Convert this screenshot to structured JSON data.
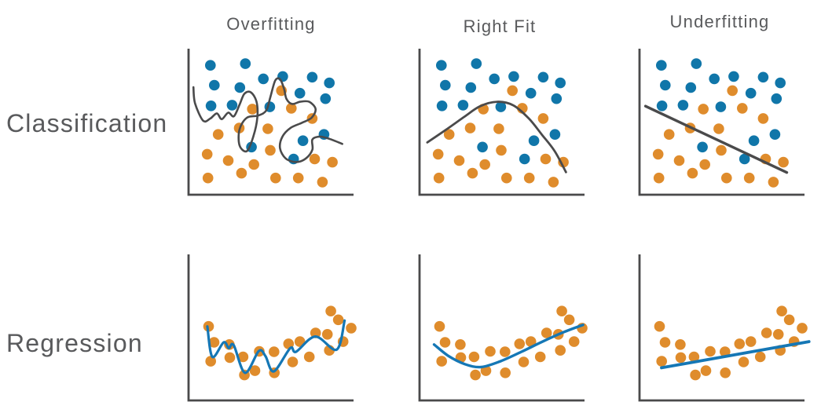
{
  "headers": [
    "Overfitting",
    "Right Fit",
    "Underfitting"
  ],
  "row_labels": [
    "Classification",
    "Regression"
  ],
  "colors": {
    "class_blue": "#1076A9",
    "dot_orange": "#DF8C2C",
    "boundary_dark": "#4A4A4B",
    "fit_blue": "#1577B5",
    "axis": "#4A4A4B",
    "text": "#595A5C",
    "background": "#FFFFFF"
  },
  "scatters": {
    "classification": {
      "blue": [
        [
          13.5,
          10.9
        ],
        [
          35.1,
          9.8
        ],
        [
          46.2,
          20.2
        ],
        [
          58.2,
          18.6
        ],
        [
          76.4,
          19.1
        ],
        [
          87,
          23
        ],
        [
          15.9,
          24.6
        ],
        [
          31.7,
          26.2
        ],
        [
          68.8,
          30.1
        ],
        [
          84.6,
          33.9
        ],
        [
          13.9,
          38.8
        ],
        [
          26.9,
          38.3
        ],
        [
          50.2,
          39.5
        ],
        [
          83.7,
          58.5
        ],
        [
          70.7,
          62.8
        ],
        [
          38.9,
          67.2
        ],
        [
          64.9,
          75.4
        ]
      ],
      "orange": [
        [
          57.4,
          28.3
        ],
        [
          63.5,
          40.5
        ],
        [
          39.4,
          41
        ],
        [
          76.4,
          47.5
        ],
        [
          18.3,
          58.5
        ],
        [
          31.3,
          54.1
        ],
        [
          49,
          54.6
        ],
        [
          11.5,
          72.1
        ],
        [
          24.5,
          76.5
        ],
        [
          40.4,
          79.2
        ],
        [
          50.5,
          69.4
        ],
        [
          77.9,
          75.4
        ],
        [
          88.9,
          77.6
        ],
        [
          12,
          88.5
        ],
        [
          32.7,
          85.2
        ],
        [
          53.8,
          88.5
        ],
        [
          67.8,
          88.5
        ],
        [
          82.7,
          91.3
        ]
      ]
    },
    "regression": {
      "orange": [
        [
          12.4,
          49
        ],
        [
          15.8,
          60
        ],
        [
          13.7,
          73
        ],
        [
          25.2,
          61.5
        ],
        [
          25.5,
          70.5
        ],
        [
          33.7,
          70
        ],
        [
          34.5,
          82.5
        ],
        [
          41,
          79.5
        ],
        [
          43.7,
          66.2
        ],
        [
          52.8,
          66.5
        ],
        [
          53,
          81
        ],
        [
          61.8,
          61
        ],
        [
          64.3,
          73.5
        ],
        [
          68.8,
          59.5
        ],
        [
          74.6,
          70
        ],
        [
          78.5,
          53.5
        ],
        [
          85.8,
          54.5
        ],
        [
          87,
          65.5
        ],
        [
          87.9,
          38.5
        ],
        [
          92.5,
          44.5
        ],
        [
          95.5,
          59.5
        ],
        [
          100.5,
          50.2
        ]
      ]
    }
  },
  "curves": {
    "classification_overfit": {
      "color": "dark",
      "smooth": true,
      "width": 2.6,
      "points": [
        [
          3,
          26
        ],
        [
          4,
          37
        ],
        [
          9,
          49
        ],
        [
          13.5,
          47.5
        ],
        [
          17.5,
          44
        ],
        [
          20.5,
          48
        ],
        [
          24.5,
          43.5
        ],
        [
          28,
          46
        ],
        [
          31.5,
          38
        ],
        [
          34.5,
          30.5
        ],
        [
          38.5,
          29.5
        ],
        [
          42,
          36
        ],
        [
          42.5,
          47
        ],
        [
          40,
          60
        ],
        [
          36,
          70
        ],
        [
          31.5,
          66
        ],
        [
          31.5,
          55
        ],
        [
          36,
          47
        ],
        [
          43,
          45.5
        ],
        [
          48,
          42
        ],
        [
          50.5,
          33
        ],
        [
          53.5,
          21.5
        ],
        [
          56.5,
          20.5
        ],
        [
          59,
          27
        ],
        [
          60.5,
          34
        ],
        [
          64,
          37.5
        ],
        [
          69,
          36
        ],
        [
          74.5,
          36
        ],
        [
          78.5,
          41
        ],
        [
          76,
          47
        ],
        [
          70,
          50.5
        ],
        [
          63,
          54
        ],
        [
          58,
          60
        ],
        [
          56.5,
          68
        ],
        [
          60,
          75
        ],
        [
          66.5,
          77.5
        ],
        [
          72.5,
          75
        ],
        [
          76.5,
          69
        ],
        [
          76.5,
          62
        ],
        [
          81,
          60
        ],
        [
          87,
          61.5
        ],
        [
          95,
          65
        ]
      ]
    },
    "classification_right_fit": {
      "color": "dark",
      "smooth": true,
      "width": 2.8,
      "points": [
        [
          4.8,
          64
        ],
        [
          16,
          55.5
        ],
        [
          27.5,
          46.5
        ],
        [
          37.5,
          39
        ],
        [
          48,
          36
        ],
        [
          58,
          38.5
        ],
        [
          67.5,
          47.5
        ],
        [
          75.5,
          58.5
        ],
        [
          83.5,
          70
        ],
        [
          90.5,
          84.5
        ]
      ]
    },
    "classification_underfit": {
      "color": "dark",
      "smooth": false,
      "width": 3.4,
      "points": [
        [
          3.7,
          39
        ],
        [
          91,
          84.7
        ]
      ]
    },
    "regression_overfit": {
      "color": "blue",
      "smooth": true,
      "width": 3.2,
      "points": [
        [
          11.6,
          49
        ],
        [
          14.7,
          70
        ],
        [
          21.7,
          60
        ],
        [
          24.8,
          64
        ],
        [
          27.9,
          62
        ],
        [
          34.9,
          81
        ],
        [
          43.4,
          66
        ],
        [
          47.5,
          69.5
        ],
        [
          52.7,
          80
        ],
        [
          62.8,
          64
        ],
        [
          66.4,
          66.5
        ],
        [
          78.3,
          56
        ],
        [
          91.5,
          65
        ],
        [
          96.4,
          45
        ]
      ]
    },
    "regression_right_fit": {
      "color": "blue",
      "smooth": true,
      "width": 3.4,
      "points": [
        [
          9,
          61.5
        ],
        [
          18,
          69.5
        ],
        [
          28,
          75
        ],
        [
          38,
          77
        ],
        [
          50,
          73
        ],
        [
          63,
          66.5
        ],
        [
          76,
          59.5
        ],
        [
          89,
          53
        ],
        [
          101,
          48
        ]
      ]
    },
    "regression_underfit": {
      "color": "blue",
      "smooth": false,
      "width": 3.8,
      "points": [
        [
          13.6,
          77.5
        ],
        [
          104.7,
          59.5
        ]
      ]
    }
  },
  "panels": [
    {
      "name": "classification-overfitting",
      "row": 0,
      "col": 0,
      "scatter": "classification",
      "curve": "classification_overfit"
    },
    {
      "name": "classification-right-fit",
      "row": 0,
      "col": 1,
      "scatter": "classification",
      "curve": "classification_right_fit"
    },
    {
      "name": "classification-underfitting",
      "row": 0,
      "col": 2,
      "scatter": "classification",
      "curve": "classification_underfit"
    },
    {
      "name": "regression-overfitting",
      "row": 1,
      "col": 0,
      "scatter": "regression",
      "curve": "regression_overfit"
    },
    {
      "name": "regression-right-fit",
      "row": 1,
      "col": 1,
      "scatter": "regression",
      "curve": "regression_right_fit"
    },
    {
      "name": "regression-underfitting",
      "row": 1,
      "col": 2,
      "scatter": "regression",
      "curve": "regression_underfit"
    }
  ]
}
